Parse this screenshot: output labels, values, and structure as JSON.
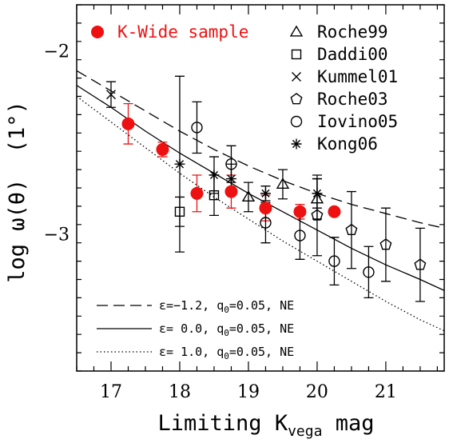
{
  "chart_data": {
    "type": "scatter",
    "xlabel": "Limiting K",
    "xlabel_sub": "vega",
    "xlabel_tail": " mag",
    "ylabel": "log ω(θ)  (1°)",
    "xlim": [
      16.5,
      21.85
    ],
    "ylim": [
      -3.75,
      -1.75
    ],
    "x_ticks": [
      "17",
      "18",
      "19",
      "20",
      "21"
    ],
    "x_tick_values": [
      17,
      18,
      19,
      20,
      21
    ],
    "y_ticks": [
      "−2",
      "−3"
    ],
    "y_tick_values": [
      -2,
      -3
    ],
    "highlight_color": "#ee1111",
    "series": [
      {
        "name": "K-Wide sample",
        "marker": "filled-circle",
        "color": "#ee1111",
        "points": [
          {
            "x": 17.25,
            "y": -2.4,
            "lo": -2.51,
            "hi": -2.29
          },
          {
            "x": 17.75,
            "y": -2.54,
            "lo": -2.58,
            "hi": -2.5
          },
          {
            "x": 18.25,
            "y": -2.78,
            "lo": -2.88,
            "hi": -2.68
          },
          {
            "x": 18.75,
            "y": -2.77,
            "lo": -2.86,
            "hi": -2.68
          },
          {
            "x": 19.25,
            "y": -2.86,
            "lo": -2.93,
            "hi": -2.79
          },
          {
            "x": 19.75,
            "y": -2.88,
            "lo": -2.92,
            "hi": -2.84
          },
          {
            "x": 20.25,
            "y": -2.88,
            "lo": -2.9,
            "hi": -2.86
          }
        ]
      },
      {
        "name": "Roche99",
        "marker": "triangle",
        "color": "#000000",
        "points": [
          {
            "x": 19.0,
            "y": -2.8,
            "lo": -2.88,
            "hi": -2.72
          },
          {
            "x": 19.5,
            "y": -2.73,
            "lo": -2.81,
            "hi": -2.65
          },
          {
            "x": 20.0,
            "y": -2.81,
            "lo": -2.92,
            "hi": -2.7
          }
        ]
      },
      {
        "name": "Daddi00",
        "marker": "square",
        "color": "#000000",
        "points": [
          {
            "x": 18.0,
            "y": -2.88,
            "lo": -2.96,
            "hi": -2.8
          },
          {
            "x": 18.5,
            "y": -2.79,
            "lo": -2.9,
            "hi": -2.68
          }
        ]
      },
      {
        "name": "Kummel01",
        "marker": "cross",
        "color": "#000000",
        "points": [
          {
            "x": 17.0,
            "y": -2.24,
            "lo": -2.31,
            "hi": -2.17
          }
        ]
      },
      {
        "name": "Roche03",
        "marker": "pentagon",
        "color": "#000000",
        "points": [
          {
            "x": 20.0,
            "y": -2.9,
            "lo": -3.12,
            "hi": -2.68
          },
          {
            "x": 20.5,
            "y": -2.98,
            "lo": -3.19,
            "hi": -2.77
          },
          {
            "x": 21.0,
            "y": -3.06,
            "lo": -3.26,
            "hi": -2.86
          },
          {
            "x": 21.5,
            "y": -3.17,
            "lo": -3.37,
            "hi": -2.97
          }
        ]
      },
      {
        "name": "Iovino05",
        "marker": "open-circle",
        "color": "#000000",
        "points": [
          {
            "x": 18.25,
            "y": -2.42,
            "lo": -2.56,
            "hi": -2.28
          },
          {
            "x": 18.75,
            "y": -2.62,
            "lo": -2.72,
            "hi": -2.52
          },
          {
            "x": 19.25,
            "y": -2.94,
            "lo": -3.05,
            "hi": -2.83
          },
          {
            "x": 19.75,
            "y": -3.01,
            "lo": -3.14,
            "hi": -2.88
          },
          {
            "x": 20.25,
            "y": -3.15,
            "lo": -3.28,
            "hi": -3.02
          },
          {
            "x": 20.75,
            "y": -3.21,
            "lo": -3.35,
            "hi": -3.07
          }
        ]
      },
      {
        "name": "Kong06",
        "marker": "asterisk",
        "color": "#000000",
        "points": [
          {
            "x": 18.0,
            "y": -2.62,
            "lo": -3.1,
            "hi": -2.14
          },
          {
            "x": 18.5,
            "y": -2.68,
            "lo": -2.78,
            "hi": -2.58
          },
          {
            "x": 18.75,
            "y": -2.7,
            "lo": -2.78,
            "hi": -2.62
          },
          {
            "x": 19.25,
            "y": -2.78,
            "lo": -2.82,
            "hi": -2.74
          },
          {
            "x": 20.0,
            "y": -2.78,
            "lo": -2.86,
            "hi": -2.7
          }
        ]
      }
    ],
    "models": [
      {
        "name": "ε=−1.2, q0=0.05, NE",
        "style": "dashed",
        "eps_label": "ε=−1.2,",
        "q_label": "q",
        "q_sub": "0",
        "q_val": "=0.05, NE",
        "x": [
          16.5,
          17,
          17.5,
          18,
          18.5,
          19,
          19.5,
          20,
          20.5,
          21,
          21.5,
          21.85
        ],
        "y": [
          -2.11,
          -2.22,
          -2.33,
          -2.44,
          -2.54,
          -2.63,
          -2.71,
          -2.78,
          -2.84,
          -2.89,
          -2.94,
          -2.97
        ]
      },
      {
        "name": "ε=  0.0, q0=0.05, NE",
        "style": "solid",
        "eps_label": "ε=  0.0,",
        "q_label": "q",
        "q_sub": "0",
        "q_val": "=0.05, NE",
        "x": [
          16.5,
          17,
          17.5,
          18,
          18.5,
          19,
          19.5,
          20,
          20.5,
          21,
          21.5,
          21.85
        ],
        "y": [
          -2.19,
          -2.31,
          -2.44,
          -2.56,
          -2.67,
          -2.78,
          -2.88,
          -2.98,
          -3.08,
          -3.17,
          -3.25,
          -3.31
        ]
      },
      {
        "name": "ε=  1.0, q0=0.05, NE",
        "style": "dotted",
        "eps_label": "ε=  1.0,",
        "q_label": "q",
        "q_sub": "0",
        "q_val": "=0.05, NE",
        "x": [
          16.5,
          17,
          17.5,
          18,
          18.5,
          19,
          19.5,
          20,
          20.5,
          21,
          21.5,
          21.85
        ],
        "y": [
          -2.25,
          -2.39,
          -2.53,
          -2.67,
          -2.8,
          -2.92,
          -3.04,
          -3.15,
          -3.26,
          -3.37,
          -3.47,
          -3.53
        ]
      }
    ],
    "legend_position": "top (markers) / bottom-left (model lines)",
    "grid": false
  }
}
